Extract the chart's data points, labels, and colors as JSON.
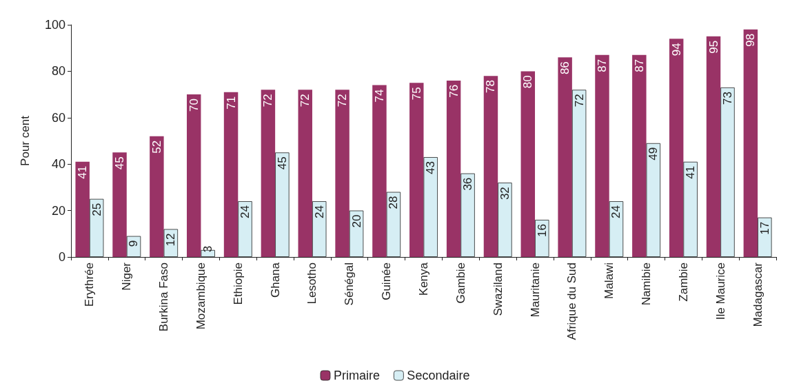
{
  "chart_data": {
    "type": "bar",
    "ylabel": "Pour cent",
    "categories": [
      "Erythrée",
      "Niger",
      "Burkina Faso",
      "Mozambique",
      "Ethiopie",
      "Ghana",
      "Lesotho",
      "Sénégal",
      "Guinée",
      "Kenya",
      "Gambie",
      "Swaziland",
      "Mauritanie",
      "Afrique du Sud",
      "Malawi",
      "Namibie",
      "Zambie",
      "Ile Maurice",
      "Madagascar"
    ],
    "series": [
      {
        "name": "Primaire",
        "color": "#993366",
        "values": [
          41,
          45,
          52,
          70,
          71,
          72,
          72,
          72,
          74,
          75,
          76,
          78,
          80,
          86,
          87,
          87,
          94,
          95,
          98
        ]
      },
      {
        "name": "Secondaire",
        "color": "#d6eef4",
        "values": [
          25,
          9,
          12,
          3,
          24,
          45,
          24,
          20,
          28,
          43,
          36,
          32,
          16,
          72,
          24,
          49,
          41,
          73,
          17
        ]
      }
    ],
    "ylim": [
      0,
      100
    ],
    "yticks": [
      0,
      20,
      40,
      60,
      80,
      100
    ],
    "grid": false,
    "legend": "bottom",
    "data_labels": true
  }
}
